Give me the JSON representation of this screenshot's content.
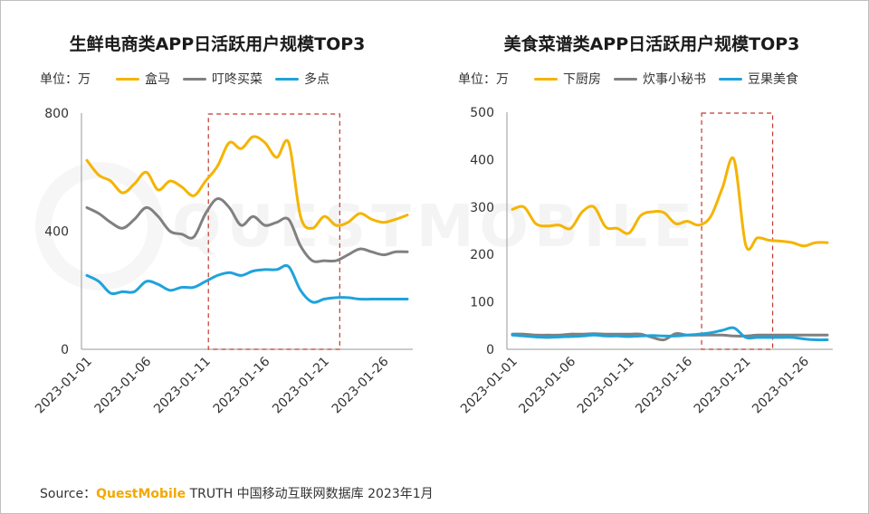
{
  "source": {
    "label": "Source：",
    "brand": "QuestMobile",
    "text": "TRUTH 中国移动互联网数据库 2023年1月"
  },
  "watermark": "QUESTMOBILE",
  "chart_data": [
    {
      "type": "line",
      "title": "生鲜电商类APP日活跃用户规模TOP3",
      "unit_label": "单位：万",
      "ylim": [
        0,
        800
      ],
      "yticks": [
        0,
        400,
        800
      ],
      "x": [
        "2023-01-01",
        "2023-01-02",
        "2023-01-03",
        "2023-01-04",
        "2023-01-05",
        "2023-01-06",
        "2023-01-07",
        "2023-01-08",
        "2023-01-09",
        "2023-01-10",
        "2023-01-11",
        "2023-01-12",
        "2023-01-13",
        "2023-01-14",
        "2023-01-15",
        "2023-01-16",
        "2023-01-17",
        "2023-01-18",
        "2023-01-19",
        "2023-01-20",
        "2023-01-21",
        "2023-01-22",
        "2023-01-23",
        "2023-01-24",
        "2023-01-25",
        "2023-01-26",
        "2023-01-27",
        "2023-01-28"
      ],
      "xticks": [
        "2023-01-01",
        "2023-01-06",
        "2023-01-11",
        "2023-01-16",
        "2023-01-21",
        "2023-01-26"
      ],
      "highlight": [
        "2023-01-12",
        "2023-01-22"
      ],
      "series": [
        {
          "name": "盒马",
          "color": "#f5b400",
          "values": [
            640,
            590,
            570,
            530,
            560,
            600,
            540,
            570,
            550,
            520,
            570,
            620,
            700,
            680,
            720,
            700,
            650,
            700,
            450,
            410,
            450,
            420,
            430,
            460,
            440,
            430,
            440,
            455
          ]
        },
        {
          "name": "叮咚买菜",
          "color": "#808080",
          "values": [
            480,
            460,
            430,
            410,
            440,
            480,
            450,
            400,
            390,
            380,
            460,
            510,
            480,
            420,
            450,
            420,
            430,
            440,
            350,
            300,
            300,
            300,
            320,
            340,
            330,
            320,
            330,
            330
          ]
        },
        {
          "name": "多点",
          "color": "#1fa3db",
          "values": [
            250,
            230,
            190,
            195,
            195,
            230,
            220,
            200,
            210,
            210,
            230,
            250,
            260,
            250,
            265,
            270,
            270,
            280,
            200,
            160,
            170,
            175,
            175,
            170,
            170,
            170,
            170,
            170
          ]
        }
      ]
    },
    {
      "type": "line",
      "title": "美食菜谱类APP日活跃用户规模TOP3",
      "unit_label": "单位：万",
      "ylim": [
        0,
        500
      ],
      "yticks": [
        0,
        100,
        200,
        300,
        400,
        500
      ],
      "x": [
        "2023-01-01",
        "2023-01-02",
        "2023-01-03",
        "2023-01-04",
        "2023-01-05",
        "2023-01-06",
        "2023-01-07",
        "2023-01-08",
        "2023-01-09",
        "2023-01-10",
        "2023-01-11",
        "2023-01-12",
        "2023-01-13",
        "2023-01-14",
        "2023-01-15",
        "2023-01-16",
        "2023-01-17",
        "2023-01-18",
        "2023-01-19",
        "2023-01-20",
        "2023-01-21",
        "2023-01-22",
        "2023-01-23",
        "2023-01-24",
        "2023-01-25",
        "2023-01-26",
        "2023-01-27",
        "2023-01-28"
      ],
      "xticks": [
        "2023-01-01",
        "2023-01-06",
        "2023-01-11",
        "2023-01-16",
        "2023-01-21",
        "2023-01-26"
      ],
      "highlight": [
        "2023-01-18",
        "2023-01-23"
      ],
      "series": [
        {
          "name": "下厨房",
          "color": "#f5b400",
          "values": [
            295,
            300,
            265,
            260,
            262,
            255,
            290,
            300,
            258,
            255,
            245,
            282,
            290,
            288,
            265,
            270,
            262,
            280,
            340,
            400,
            220,
            235,
            230,
            228,
            225,
            218,
            225,
            225
          ]
        },
        {
          "name": "炊事小秘书",
          "color": "#808080",
          "values": [
            32,
            32,
            30,
            30,
            30,
            32,
            32,
            33,
            32,
            32,
            32,
            32,
            25,
            20,
            33,
            30,
            30,
            30,
            30,
            28,
            28,
            30,
            30,
            30,
            30,
            30,
            30,
            30
          ]
        },
        {
          "name": "豆果美食",
          "color": "#1fa3db",
          "values": [
            30,
            28,
            26,
            25,
            26,
            27,
            28,
            30,
            28,
            28,
            27,
            28,
            29,
            28,
            28,
            30,
            32,
            35,
            40,
            45,
            25,
            25,
            25,
            25,
            25,
            22,
            20,
            20
          ]
        }
      ]
    }
  ]
}
